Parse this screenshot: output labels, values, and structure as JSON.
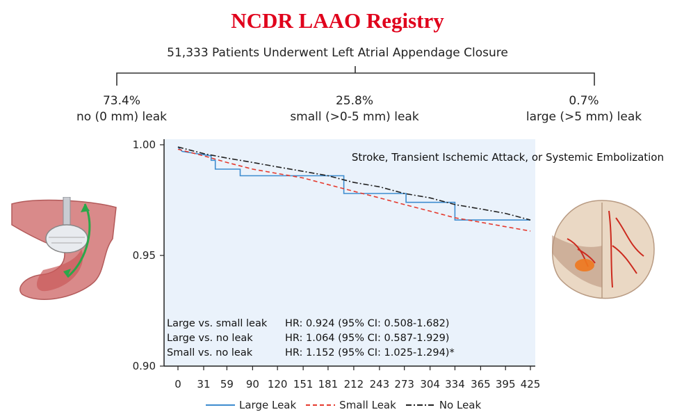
{
  "title": "NCDR LAAO Registry",
  "subtitle": "51,333 Patients Underwent Left Atrial Appendage Closure",
  "groups": [
    {
      "pct": "73.4%",
      "label": "no (0 mm) leak"
    },
    {
      "pct": "25.8%",
      "label": "small (>0-5 mm) leak"
    },
    {
      "pct": "0.7%",
      "label": "large (>5 mm) leak"
    }
  ],
  "hazard_ratios": [
    {
      "comparison": "Large vs. small leak",
      "hr": "HR: 0.924 (95% CI: 0.508-1.682)"
    },
    {
      "comparison": "Large vs. no leak",
      "hr": "HR: 1.064 (95% CI: 0.587-1.929)"
    },
    {
      "comparison": "Small vs. no leak",
      "hr": "HR: 1.152 (95% CI: 1.025-1.294)*"
    }
  ],
  "colors": {
    "title": "#e0001b",
    "large": "#3d8ccf",
    "small": "#e53a2e",
    "none": "#222222",
    "plot_bg": "#eaf2fb"
  },
  "chart_data": {
    "type": "line",
    "title": "Stroke, Transient Ischemic Attack, or Systemic Embolization",
    "xlabel": "",
    "ylabel": "",
    "xlim": [
      0,
      425
    ],
    "ylim": [
      0.9,
      1.0
    ],
    "x_ticks": [
      0,
      31,
      59,
      90,
      120,
      151,
      181,
      212,
      243,
      273,
      304,
      334,
      365,
      395,
      425
    ],
    "y_ticks": [
      0.9,
      0.95,
      1.0
    ],
    "y_tick_labels": [
      "0.90",
      "0.95",
      "1.00"
    ],
    "legend_position": "bottom",
    "series": [
      {
        "name": "Large Leak",
        "style": "solid",
        "color": "#3d8ccf",
        "x": [
          0,
          5,
          40,
          40,
          45,
          45,
          75,
          75,
          200,
          200,
          275,
          275,
          334,
          334,
          425
        ],
        "y": [
          0.999,
          0.997,
          0.995,
          0.993,
          0.993,
          0.989,
          0.989,
          0.986,
          0.986,
          0.978,
          0.978,
          0.974,
          0.974,
          0.966,
          0.966
        ]
      },
      {
        "name": "Small Leak",
        "style": "dashed",
        "color": "#e53a2e",
        "x": [
          0,
          31,
          59,
          90,
          120,
          151,
          181,
          212,
          243,
          273,
          304,
          334,
          365,
          395,
          425
        ],
        "y": [
          0.998,
          0.995,
          0.992,
          0.989,
          0.987,
          0.985,
          0.982,
          0.979,
          0.976,
          0.973,
          0.97,
          0.967,
          0.965,
          0.963,
          0.961
        ]
      },
      {
        "name": "No Leak",
        "style": "dashdot",
        "color": "#222222",
        "x": [
          0,
          31,
          59,
          90,
          120,
          151,
          181,
          212,
          243,
          273,
          304,
          334,
          365,
          395,
          425
        ],
        "y": [
          0.999,
          0.996,
          0.994,
          0.992,
          0.99,
          0.988,
          0.986,
          0.983,
          0.981,
          0.978,
          0.976,
          0.973,
          0.971,
          0.969,
          0.966
        ]
      }
    ]
  }
}
